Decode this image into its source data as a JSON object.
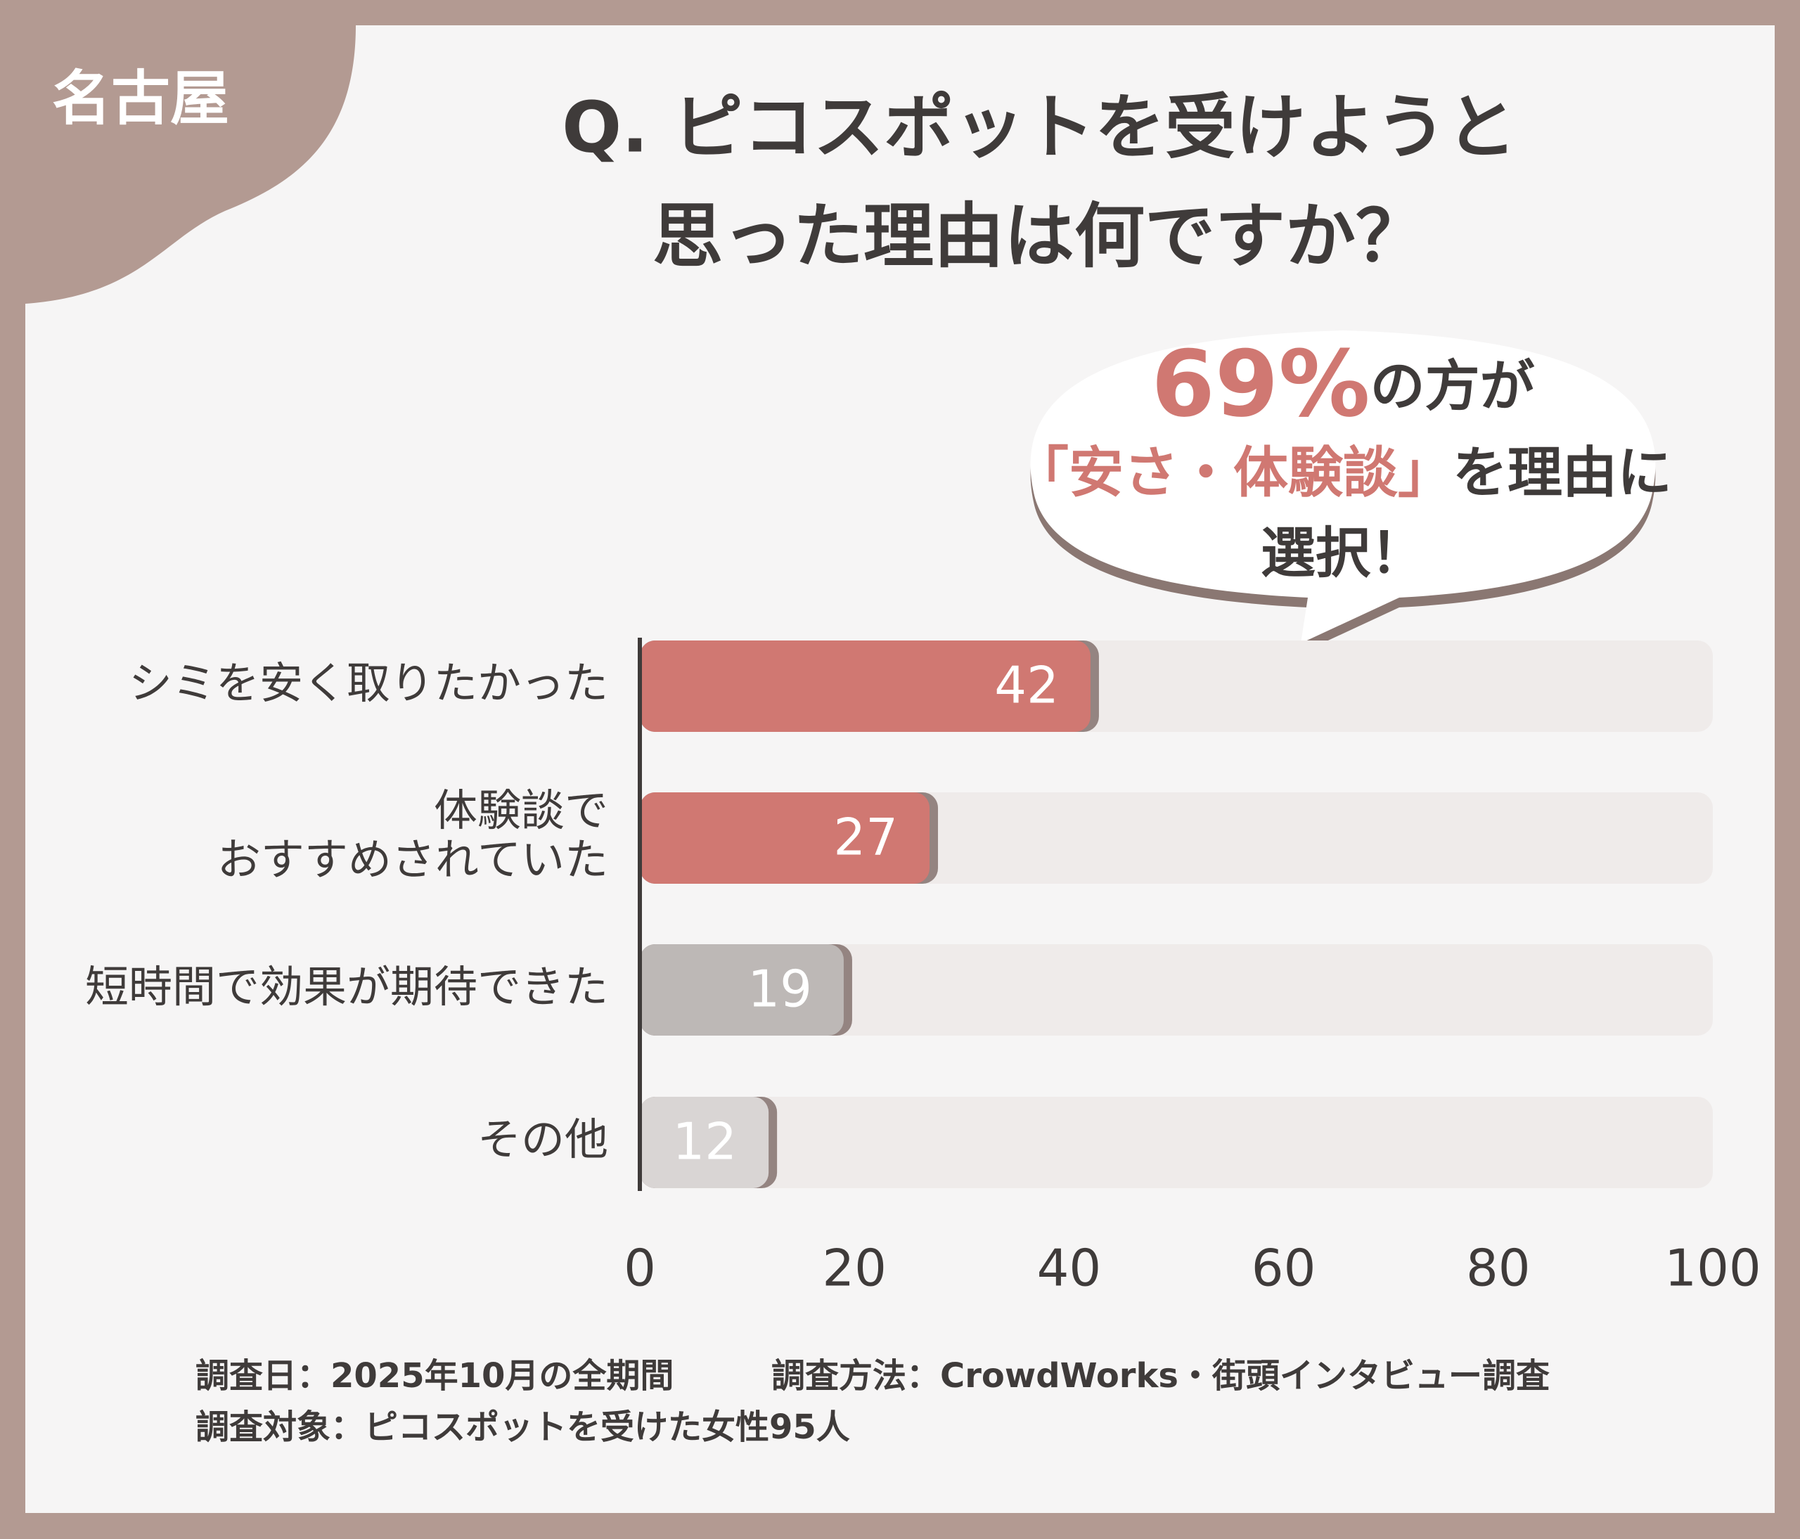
{
  "badge": "名古屋",
  "chart_data": {
    "type": "bar",
    "orientation": "horizontal",
    "title": [
      "Q. ピコスポットを受けようと",
      "思った理由は何ですか？"
    ],
    "categories": [
      "シミを安く取りたかった",
      "体験談で\nおすすめされていた",
      "短時間で効果が期待できた",
      "その他"
    ],
    "values": [
      42,
      27,
      19,
      12
    ],
    "colors": [
      "#d07872",
      "#d07872",
      "#bdb8b6",
      "#d9d5d4"
    ],
    "xlim": [
      0,
      100
    ],
    "xticks": [
      0,
      20,
      40,
      60,
      80,
      100
    ],
    "callout": {
      "highlight": "69%",
      "line1": "の方が",
      "emphasis": "「安さ・体験談」",
      "line2": "を理由に",
      "line3": "選択！"
    }
  },
  "footnotes": [
    "調査日：2025年10月の全期間",
    "調査方法：CrowdWorks・街頭インタビュー調査",
    "調査対象：ピコスポットを受けた女性95人"
  ]
}
